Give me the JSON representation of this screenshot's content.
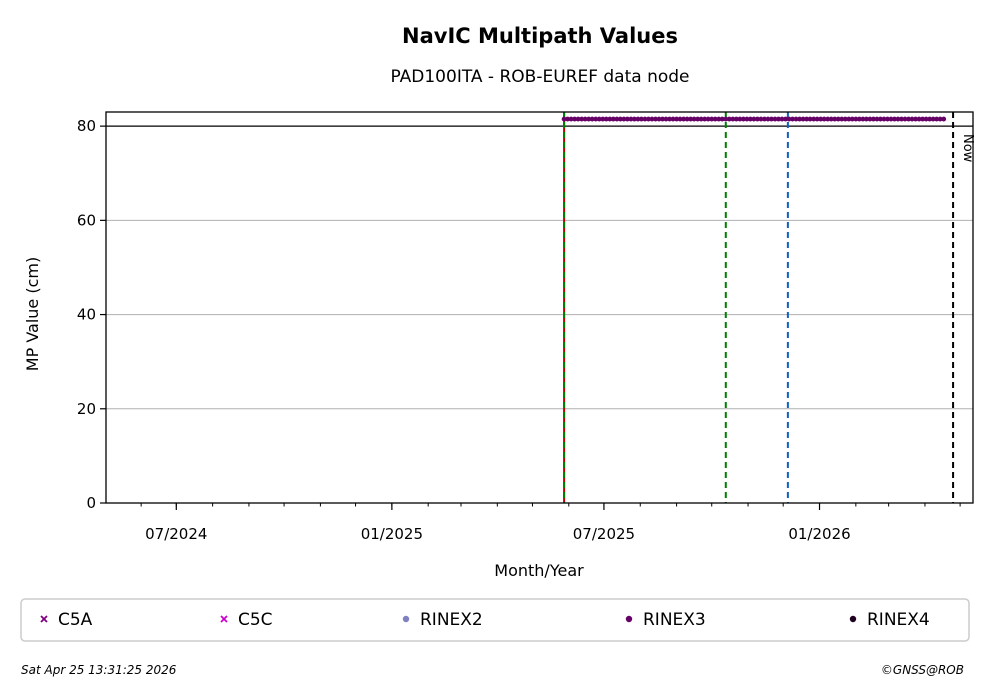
{
  "chart_data": {
    "type": "scatter",
    "title": "NavIC Multipath Values",
    "subtitle": "PAD100ITA - ROB-EUREF data node",
    "xlabel": "Month/Year",
    "ylabel": "MP Value (cm)",
    "xlim": [
      "2024-05-02",
      "2026-05-12"
    ],
    "ylim": [
      0,
      83
    ],
    "yticks": [
      0,
      20,
      40,
      60,
      80
    ],
    "xticks": [
      {
        "date": "2024-07-01",
        "label": "07/2024"
      },
      {
        "date": "2025-01-01",
        "label": "01/2025"
      },
      {
        "date": "2025-07-01",
        "label": "07/2025"
      },
      {
        "date": "2026-01-01",
        "label": "01/2026"
      }
    ],
    "minor_ticks_monthly": true,
    "grid": "y",
    "threshold_line": 80,
    "vertical_lines": [
      {
        "date": "2025-05-28",
        "color": "#c00000",
        "style": "solid"
      },
      {
        "date": "2025-05-28",
        "color": "#008000",
        "style": "dashed"
      },
      {
        "date": "2025-10-13",
        "color": "#008000",
        "style": "dashed"
      },
      {
        "date": "2025-12-05",
        "color": "#1060c0",
        "style": "dashed"
      },
      {
        "date": "2026-04-25",
        "color": "#000000",
        "style": "dashed",
        "label": "Now"
      }
    ],
    "series": [
      {
        "name": "C5A",
        "marker": "x",
        "color": "#800080",
        "points": []
      },
      {
        "name": "C5C",
        "marker": "x",
        "color": "#cc00cc",
        "points": []
      },
      {
        "name": "RINEX2",
        "marker": "dot",
        "color": "#8080c0",
        "points": []
      },
      {
        "name": "RINEX3",
        "marker": "dot",
        "color": "#660066",
        "constant_value": 81.5,
        "start": "2025-05-28",
        "end": "2026-04-18",
        "step_days": 3
      },
      {
        "name": "RINEX4",
        "marker": "dot",
        "color": "#200020",
        "points": []
      }
    ],
    "legend_position": "bottom"
  },
  "footer": {
    "timestamp": "Sat Apr 25 13:31:25 2026",
    "copyright": "©GNSS@ROB"
  }
}
